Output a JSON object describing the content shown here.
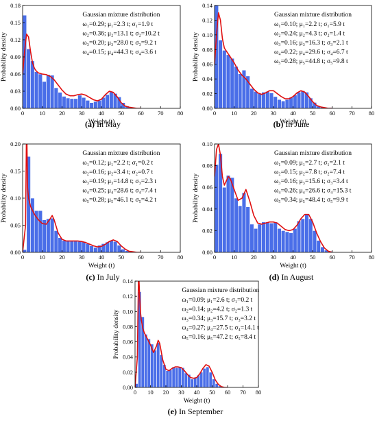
{
  "figure": {
    "bar_color": "#4a6ee8",
    "bar_edge": "#ffffff",
    "curve_color": "#e01010"
  },
  "chart_data": [
    {
      "type": "bar",
      "caption_letter": "(a)",
      "caption_text": " In May",
      "xlabel": "Weight (t)",
      "ylabel": "Probability density",
      "xlim": [
        0,
        80
      ],
      "ylim": [
        0,
        0.18
      ],
      "xticks": [
        "0",
        "10",
        "20",
        "30",
        "40",
        "50",
        "60",
        "70",
        "80"
      ],
      "yticks": [
        "0.00",
        "0.03",
        "0.06",
        "0.09",
        "0.12",
        "0.15",
        "0.18"
      ],
      "legend_title": "Gaussian mixture distribution",
      "legend_lines": [
        "ω₁=0.29; μ₁=2.3 t; σ₁=1.9 t",
        "ω₂=0.36; μ₂=13.1 t; σ₂=10.2 t",
        "ω₃=0.20; μ₃=28.0 t; σ₃=9.2 t",
        "ω₄=0.15; μ₄=44.3 t; σ₄=3.6 t"
      ],
      "bin_width": 2,
      "x": [
        1,
        3,
        5,
        7,
        9,
        11,
        13,
        15,
        17,
        19,
        21,
        23,
        25,
        27,
        29,
        31,
        33,
        35,
        37,
        39,
        41,
        43,
        45,
        47,
        49,
        51,
        53,
        55,
        57,
        59
      ],
      "values": [
        0.163,
        0.104,
        0.083,
        0.064,
        0.06,
        0.047,
        0.059,
        0.058,
        0.036,
        0.028,
        0.021,
        0.018,
        0.017,
        0.017,
        0.023,
        0.019,
        0.014,
        0.01,
        0.012,
        0.014,
        0.019,
        0.024,
        0.029,
        0.026,
        0.02,
        0.01,
        0.004,
        0.002,
        0.001,
        0.001
      ],
      "curve": {
        "x": [
          0,
          1,
          2,
          3,
          4,
          5,
          6,
          7,
          8,
          10,
          12,
          14,
          16,
          18,
          20,
          22,
          24,
          26,
          28,
          30,
          32,
          34,
          36,
          38,
          40,
          42,
          44,
          46,
          48,
          50,
          52,
          54,
          56,
          58,
          60
        ],
        "y": [
          0.06,
          0.1,
          0.13,
          0.125,
          0.1,
          0.08,
          0.07,
          0.065,
          0.062,
          0.06,
          0.059,
          0.056,
          0.05,
          0.041,
          0.032,
          0.025,
          0.022,
          0.022,
          0.024,
          0.025,
          0.023,
          0.019,
          0.015,
          0.013,
          0.016,
          0.024,
          0.03,
          0.028,
          0.02,
          0.01,
          0.004,
          0.002,
          0.001,
          0.0,
          0.0
        ]
      }
    },
    {
      "type": "bar",
      "caption_letter": "(b)",
      "caption_text": " In June",
      "xlabel": "Weight (t)",
      "ylabel": "Probability density",
      "xlim": [
        0,
        80
      ],
      "ylim": [
        0,
        0.14
      ],
      "xticks": [
        "0",
        "10",
        "20",
        "30",
        "40",
        "50",
        "60",
        "70",
        "80"
      ],
      "yticks": [
        "0.00",
        "0.02",
        "0.04",
        "0.06",
        "0.08",
        "0.10",
        "0.12",
        "0.14"
      ],
      "legend_title": "Gaussian mixture distribution",
      "legend_lines": [
        "ω₁=0.10; μ₁=2.2 t; σ₁=5.9 t",
        "ω₂=0.24; μ₂=4.3 t; σ₂=1.4 t",
        "ω₃=0.16; μ₃=16.3 t; σ₃=2.1 t",
        "ω₄=0.22; μ₄=29.6 t; σ₄=6.7 t",
        "ω₅=0.28; μ₅=44.8 t; σ₅=9.8 t"
      ],
      "bin_width": 2,
      "x": [
        1,
        3,
        5,
        7,
        9,
        11,
        13,
        15,
        17,
        19,
        21,
        23,
        25,
        27,
        29,
        31,
        33,
        35,
        37,
        39,
        41,
        43,
        45,
        47,
        49,
        51,
        53,
        55,
        57,
        59
      ],
      "values": [
        0.141,
        0.093,
        0.079,
        0.073,
        0.068,
        0.057,
        0.047,
        0.052,
        0.044,
        0.027,
        0.023,
        0.02,
        0.022,
        0.023,
        0.021,
        0.016,
        0.012,
        0.01,
        0.012,
        0.015,
        0.018,
        0.022,
        0.024,
        0.022,
        0.014,
        0.008,
        0.003,
        0.002,
        0.001,
        0.001
      ],
      "curve": {
        "x": [
          0,
          1,
          2,
          3,
          4,
          5,
          6,
          7,
          8,
          10,
          12,
          14,
          16,
          18,
          20,
          22,
          24,
          26,
          28,
          30,
          32,
          34,
          36,
          38,
          40,
          42,
          44,
          46,
          48,
          50,
          52,
          54,
          56,
          58,
          60
        ],
        "y": [
          0.06,
          0.1,
          0.13,
          0.12,
          0.095,
          0.082,
          0.078,
          0.074,
          0.07,
          0.062,
          0.052,
          0.045,
          0.04,
          0.033,
          0.026,
          0.021,
          0.019,
          0.021,
          0.024,
          0.024,
          0.02,
          0.016,
          0.013,
          0.013,
          0.016,
          0.021,
          0.024,
          0.022,
          0.016,
          0.009,
          0.004,
          0.002,
          0.001,
          0.0,
          0.0
        ]
      }
    },
    {
      "type": "bar",
      "caption_letter": "(c)",
      "caption_text": " In July",
      "xlabel": "Weight (t)",
      "ylabel": "Probability density",
      "xlim": [
        0,
        80
      ],
      "ylim": [
        0,
        0.2
      ],
      "xticks": [
        "0",
        "10",
        "20",
        "30",
        "40",
        "50",
        "60",
        "70",
        "80"
      ],
      "yticks": [
        "0.00",
        "0.05",
        "0.10",
        "0.15",
        "0.20"
      ],
      "legend_title": "Gaussian mixture distribution",
      "legend_lines": [
        "ω₁=0.12; μ₁=2.2 t; σ₁=0.2 t",
        "ω₂=0.16; μ₂=3.4 t; σ₂=0.7 t",
        "ω₃=0.19; μ₃=14.8 t; σ₃=2.3 t",
        "ω₄=0.25; μ₄=28.6 t; σ₄=7.4 t",
        "ω₅=0.28; μ₅=46.1 t; σ₅=4.2 t"
      ],
      "bin_width": 2,
      "x": [
        1,
        3,
        5,
        7,
        9,
        11,
        13,
        15,
        17,
        19,
        21,
        23,
        25,
        27,
        29,
        31,
        33,
        35,
        37,
        39,
        41,
        43,
        45,
        47,
        49,
        51,
        53,
        55,
        57,
        59
      ],
      "values": [
        0.005,
        0.177,
        0.1,
        0.077,
        0.077,
        0.06,
        0.062,
        0.063,
        0.04,
        0.027,
        0.022,
        0.022,
        0.021,
        0.021,
        0.02,
        0.02,
        0.016,
        0.012,
        0.009,
        0.013,
        0.016,
        0.019,
        0.022,
        0.02,
        0.013,
        0.006,
        0.003,
        0.001,
        0.0,
        0.0
      ],
      "curve": {
        "x": [
          0,
          1.5,
          1.9,
          2.2,
          2.5,
          3,
          4,
          6,
          8,
          10,
          12,
          14,
          15,
          16,
          18,
          20,
          22,
          24,
          26,
          28,
          30,
          32,
          34,
          36,
          38,
          40,
          42,
          44,
          46,
          48,
          50,
          52,
          54,
          56,
          58,
          60
        ],
        "y": [
          0.0,
          0.05,
          0.2,
          0.2,
          0.12,
          0.1,
          0.085,
          0.07,
          0.06,
          0.053,
          0.052,
          0.062,
          0.068,
          0.06,
          0.036,
          0.024,
          0.021,
          0.021,
          0.021,
          0.021,
          0.02,
          0.018,
          0.015,
          0.012,
          0.01,
          0.011,
          0.015,
          0.02,
          0.023,
          0.02,
          0.012,
          0.006,
          0.002,
          0.001,
          0.0,
          0.0
        ]
      }
    },
    {
      "type": "bar",
      "caption_letter": "(d)",
      "caption_text": " In August",
      "xlabel": "Weight (t)",
      "ylabel": "Probability density",
      "xlim": [
        0,
        80
      ],
      "ylim": [
        0,
        0.1
      ],
      "xticks": [
        "0",
        "10",
        "20",
        "30",
        "40",
        "50",
        "60",
        "70",
        "80"
      ],
      "yticks": [
        "0.00",
        "0.02",
        "0.04",
        "0.06",
        "0.08",
        "0.10"
      ],
      "legend_title": "Gaussian mixture distribution",
      "legend_lines": [
        "ω₁=0.09; μ₁=2.7 t; σ₁=2.1 t",
        "ω₂=0.15; μ₂=7.8 t; σ₂=7.4 t",
        "ω₃=0.16; μ₃=15.6 t; σ₃=3.4 t",
        "ω₄=0.26; μ₄=26.6 t; σ₄=15.3 t",
        "ω₅=0.34; μ₅=48.4 t; σ₅=9.9 t"
      ],
      "bin_width": 2,
      "x": [
        1,
        3,
        5,
        7,
        9,
        11,
        13,
        15,
        17,
        19,
        21,
        23,
        25,
        27,
        29,
        31,
        33,
        35,
        37,
        39,
        41,
        43,
        45,
        47,
        49,
        51,
        53,
        55,
        57,
        59
      ],
      "values": [
        0.081,
        0.091,
        0.06,
        0.071,
        0.069,
        0.05,
        0.043,
        0.055,
        0.042,
        0.026,
        0.022,
        0.026,
        0.028,
        0.028,
        0.027,
        0.028,
        0.022,
        0.02,
        0.019,
        0.018,
        0.022,
        0.029,
        0.031,
        0.035,
        0.031,
        0.02,
        0.011,
        0.005,
        0.002,
        0.001
      ],
      "curve": {
        "x": [
          0,
          1,
          2,
          3,
          4,
          5,
          6,
          7,
          8,
          10,
          12,
          14,
          16,
          18,
          20,
          22,
          24,
          26,
          28,
          30,
          32,
          34,
          36,
          38,
          40,
          42,
          44,
          46,
          48,
          50,
          52,
          54,
          56,
          58,
          60
        ],
        "y": [
          0.07,
          0.095,
          0.1,
          0.09,
          0.07,
          0.062,
          0.066,
          0.07,
          0.068,
          0.058,
          0.048,
          0.05,
          0.058,
          0.047,
          0.034,
          0.027,
          0.026,
          0.027,
          0.028,
          0.028,
          0.027,
          0.024,
          0.021,
          0.02,
          0.021,
          0.025,
          0.031,
          0.035,
          0.035,
          0.028,
          0.018,
          0.01,
          0.004,
          0.001,
          0.0
        ]
      }
    },
    {
      "type": "bar",
      "caption_letter": "(e)",
      "caption_text": " In September",
      "xlabel": "Weight (t)",
      "ylabel": "Probability density",
      "xlim": [
        0,
        80
      ],
      "ylim": [
        0,
        0.14
      ],
      "xticks": [
        "0",
        "10",
        "20",
        "30",
        "40",
        "50",
        "60",
        "70",
        "80"
      ],
      "yticks": [
        "0.00",
        "0.02",
        "0.04",
        "0.06",
        "0.08",
        "0.10",
        "0.12",
        "0.14"
      ],
      "legend_title": "Gaussian mixture distribution",
      "legend_lines": [
        "ω₁=0.09; μ₁=2.6 t; σ₁=0.2 t",
        "ω₂=0.14; μ₂=4.2 t; σ₂=1.3 t",
        "ω₃=0.34; μ₃=15.7 t; σ₃=3.2 t",
        "ω₄=0.27; μ₄=27.5 t; σ₄=14.1 t",
        "ω₅=0.16; μ₅=47.2 t; σ₅=8.4 t"
      ],
      "bin_width": 2,
      "x": [
        1,
        3,
        5,
        7,
        9,
        11,
        13,
        15,
        17,
        19,
        21,
        23,
        25,
        27,
        29,
        31,
        33,
        35,
        37,
        39,
        41,
        43,
        45,
        47,
        49,
        51,
        53,
        55,
        57,
        59
      ],
      "values": [
        0.005,
        0.126,
        0.093,
        0.07,
        0.064,
        0.057,
        0.049,
        0.059,
        0.043,
        0.03,
        0.022,
        0.023,
        0.027,
        0.026,
        0.027,
        0.026,
        0.019,
        0.017,
        0.011,
        0.013,
        0.016,
        0.02,
        0.025,
        0.027,
        0.02,
        0.011,
        0.005,
        0.002,
        0.001,
        0.0
      ],
      "curve": {
        "x": [
          0,
          1.5,
          2.2,
          2.6,
          3,
          3.5,
          4,
          5,
          6,
          8,
          10,
          12,
          14,
          15,
          16,
          18,
          20,
          22,
          24,
          26,
          28,
          30,
          32,
          34,
          36,
          38,
          40,
          42,
          44,
          46,
          48,
          50,
          52,
          54,
          56,
          58,
          60
        ],
        "y": [
          0.0,
          0.04,
          0.14,
          0.14,
          0.12,
          0.1,
          0.09,
          0.078,
          0.072,
          0.064,
          0.056,
          0.046,
          0.055,
          0.062,
          0.058,
          0.036,
          0.024,
          0.022,
          0.025,
          0.027,
          0.027,
          0.026,
          0.022,
          0.017,
          0.013,
          0.012,
          0.013,
          0.018,
          0.025,
          0.03,
          0.028,
          0.02,
          0.01,
          0.004,
          0.001,
          0.0,
          0.0
        ]
      }
    }
  ]
}
